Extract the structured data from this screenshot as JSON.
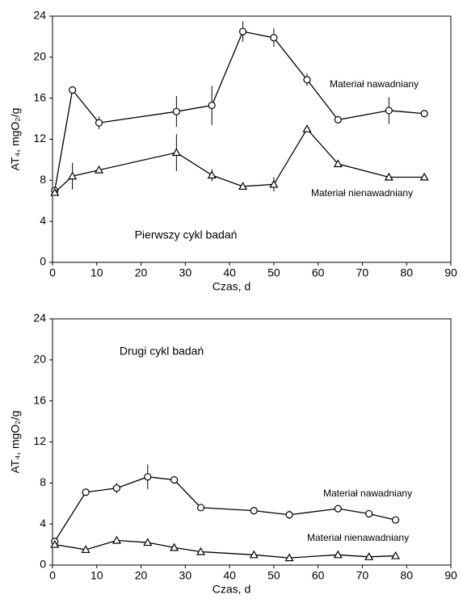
{
  "chart_data": [
    {
      "type": "line",
      "xlabel": "Czas, d",
      "ylabel": "AT₄, mgO₂/g",
      "annotation": "Pierwszy cykl badań",
      "x": [
        0.5,
        4.5,
        10.5,
        28,
        36,
        43,
        50,
        57.5,
        64.5,
        76,
        84
      ],
      "xlim": [
        0,
        90
      ],
      "xticks": [
        0,
        10,
        20,
        30,
        40,
        50,
        60,
        70,
        80,
        90
      ],
      "ylim": [
        0,
        24
      ],
      "yticks": [
        0,
        4,
        8,
        12,
        16,
        20,
        24
      ],
      "series": [
        {
          "name": "Materiał nawadniany",
          "marker": "circle",
          "color": "#000000",
          "values": [
            7.0,
            16.8,
            13.6,
            14.7,
            15.3,
            22.5,
            21.9,
            17.8,
            13.9,
            14.8,
            14.5
          ],
          "errors": [
            null,
            null,
            0.6,
            1.5,
            1.9,
            1.0,
            0.9,
            0.6,
            null,
            1.3,
            null
          ]
        },
        {
          "name": "Materiał nienawadniany",
          "marker": "triangle",
          "color": "#000000",
          "values": [
            6.8,
            8.4,
            9.0,
            10.7,
            8.5,
            7.4,
            7.6,
            13.0,
            9.6,
            8.3,
            8.3
          ],
          "errors": [
            null,
            1.3,
            null,
            1.8,
            0.6,
            null,
            0.7,
            null,
            null,
            null,
            null
          ]
        }
      ]
    },
    {
      "type": "line",
      "xlabel": "Czas, d",
      "ylabel": "AT₄, mgO₂/g",
      "annotation": "Drugi cykl badań",
      "x": [
        0.5,
        7.5,
        14.5,
        21.5,
        27.5,
        33.5,
        45.5,
        53.5,
        64.5,
        71.5,
        77.5
      ],
      "xlim": [
        0,
        90
      ],
      "xticks": [
        0,
        10,
        20,
        30,
        40,
        50,
        60,
        70,
        80,
        90
      ],
      "ylim": [
        0,
        24
      ],
      "yticks": [
        0,
        4,
        8,
        12,
        16,
        20,
        24
      ],
      "series": [
        {
          "name": "Materiał nawadniany",
          "marker": "circle",
          "color": "#000000",
          "values": [
            2.3,
            7.1,
            7.5,
            8.6,
            8.3,
            5.6,
            5.3,
            4.9,
            5.5,
            5.0,
            4.4
          ],
          "errors": [
            null,
            null,
            0.5,
            1.2,
            null,
            null,
            null,
            0.4,
            null,
            null,
            null
          ]
        },
        {
          "name": "Materiał nienawadniany",
          "marker": "triangle",
          "color": "#000000",
          "values": [
            2.0,
            1.5,
            2.4,
            2.2,
            1.7,
            1.3,
            1.0,
            0.7,
            1.0,
            0.8,
            0.9
          ],
          "errors": [
            null,
            null,
            null,
            null,
            null,
            null,
            null,
            null,
            null,
            null,
            null
          ]
        }
      ]
    }
  ]
}
